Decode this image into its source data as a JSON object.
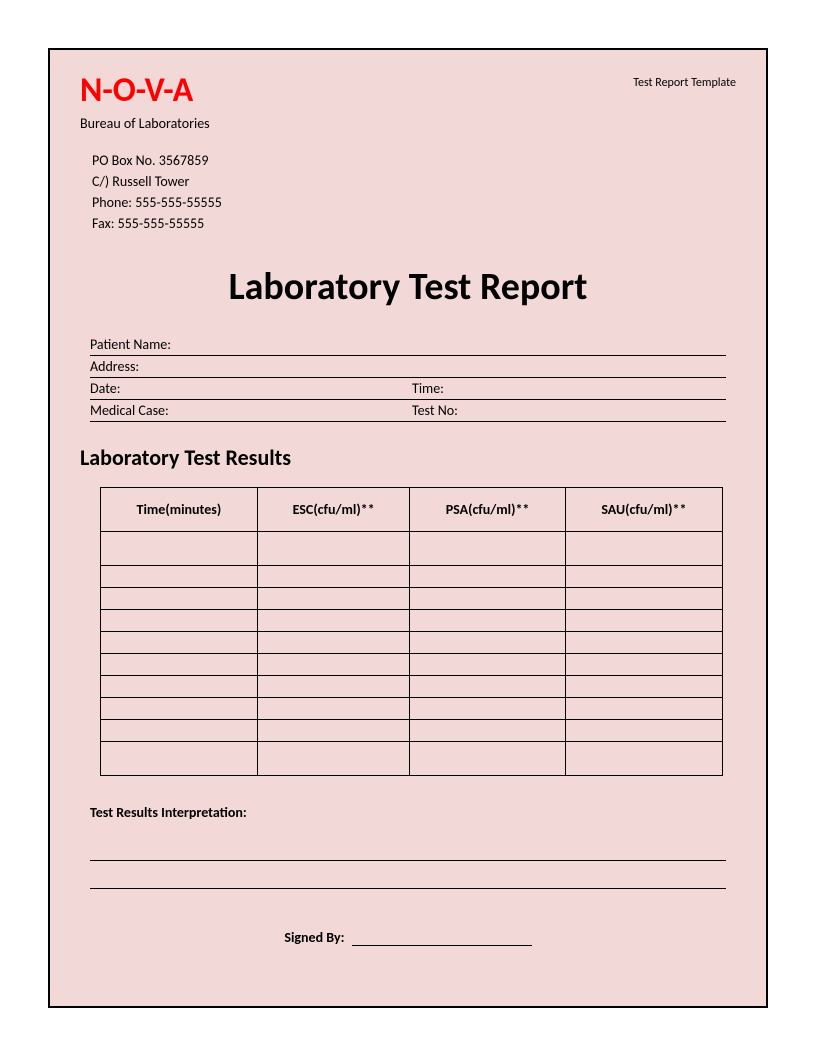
{
  "header": {
    "logo": "N-O-V-A",
    "template_label": "Test Report Template",
    "bureau": "Bureau of Laboratories",
    "contact": {
      "po_box": "PO Box No. 3567859",
      "co": "C/) Russell Tower",
      "phone": "Phone: 555-555-55555",
      "fax": "Fax: 555-555-55555"
    }
  },
  "main_title": "Laboratory Test Report",
  "fields": {
    "patient_name": "Patient Name:",
    "address": "Address:",
    "date": "Date:",
    "time": "Time:",
    "medical_case": "Medical Case:",
    "test_no": "Test No:"
  },
  "results_section_title": "Laboratory Test Results",
  "table": {
    "columns": [
      "Time(minutes)",
      "ESC(cfu/ml)**",
      "PSA(cfu/ml)**",
      "SAU(cfu/ml)**"
    ],
    "row_count": 10,
    "tall_rows": [
      0,
      9
    ],
    "border_color": "#000000",
    "header_fontsize": 14
  },
  "interpretation_label": "Test Results Interpretation:",
  "signed_by": "Signed By:",
  "styling": {
    "page_bg": "#f2d8d6",
    "page_border": "#000000",
    "logo_color": "#ff0000",
    "text_color": "#000000",
    "outer_bg": "#ffffff",
    "logo_fontsize": 34,
    "title_fontsize": 38,
    "section_fontsize": 22,
    "body_fontsize": 14
  }
}
